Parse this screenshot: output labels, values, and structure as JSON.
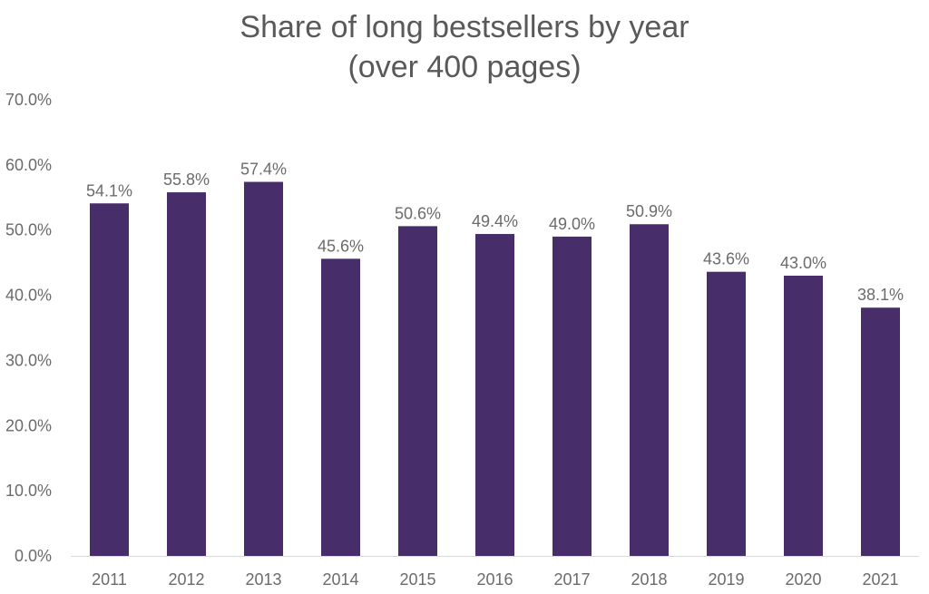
{
  "chart_data": {
    "type": "bar",
    "title": [
      "Share of long bestsellers by year",
      "(over 400 pages)"
    ],
    "xlabel": "",
    "ylabel": "",
    "categories": [
      "2011",
      "2012",
      "2013",
      "2014",
      "2015",
      "2016",
      "2017",
      "2018",
      "2019",
      "2020",
      "2021"
    ],
    "values": [
      54.1,
      55.8,
      57.4,
      45.6,
      50.6,
      49.4,
      49.0,
      50.9,
      43.6,
      43.0,
      38.1
    ],
    "data_labels": [
      "54.1%",
      "55.8%",
      "57.4%",
      "45.6%",
      "50.6%",
      "49.4%",
      "49.0%",
      "50.9%",
      "43.6%",
      "43.0%",
      "38.1%"
    ],
    "ylim": [
      0,
      70
    ],
    "yticks": [
      "0.0%",
      "10.0%",
      "20.0%",
      "30.0%",
      "40.0%",
      "50.0%",
      "60.0%",
      "70.0%"
    ],
    "grid": false,
    "legend": "none",
    "bar_color": "#482d6b"
  }
}
